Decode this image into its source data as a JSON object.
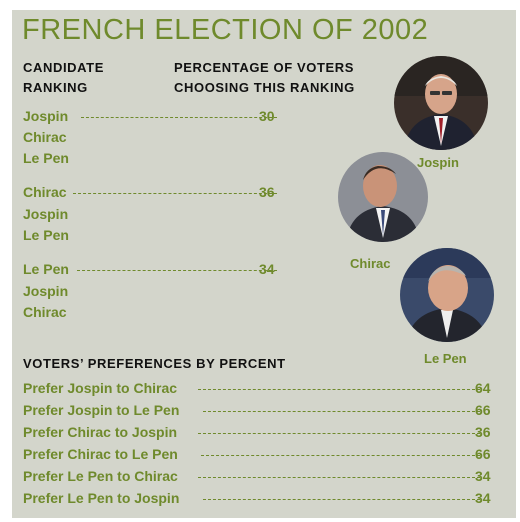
{
  "title": "FRENCH ELECTION OF 2002",
  "headers": {
    "ranking_line1": "CANDIDATE",
    "ranking_line2": "RANKING",
    "pct_line1": "PERCENTAGE OF VOTERS",
    "pct_line2": "CHOOSING THIS RANKING"
  },
  "rankings": [
    {
      "first": "Jospin",
      "second": "Chirac",
      "third": "Le Pen",
      "percent": "30"
    },
    {
      "first": "Chirac",
      "second": "Jospin",
      "third": "Le Pen",
      "percent": "36"
    },
    {
      "first": "Le Pen",
      "second": "Jospin",
      "third": "Chirac",
      "percent": "34"
    }
  ],
  "photos": {
    "jospin": "Jospin",
    "chirac": "Chirac",
    "lepen": "Le Pen"
  },
  "preferences_title": "VOTERS’ PREFERENCES BY PERCENT",
  "preferences": [
    {
      "label": "Prefer Jospin to Chirac",
      "value": "64"
    },
    {
      "label": "Prefer Jospin to Le Pen",
      "value": "66"
    },
    {
      "label": "Prefer Chirac to Jospin",
      "value": "36"
    },
    {
      "label": "Prefer Chirac to Le Pen",
      "value": "66"
    },
    {
      "label": "Prefer Le Pen to Chirac",
      "value": "34"
    },
    {
      "label": "Prefer Le Pen to Jospin",
      "value": "34"
    }
  ]
}
